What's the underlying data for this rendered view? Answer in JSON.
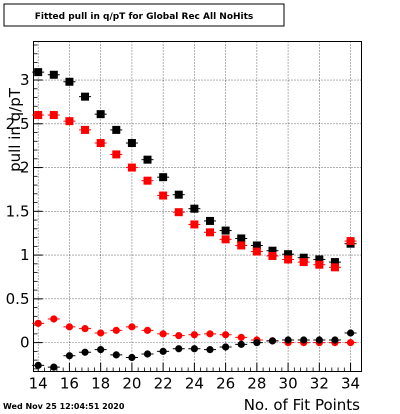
{
  "chart_data": {
    "type": "scatter",
    "title": "Fitted pull in q/pT for Global Rec All NoHits",
    "xlabel": "No. of Fit Points",
    "ylabel": "pull in q/pT",
    "xlim": [
      13.7,
      34.7
    ],
    "ylim": [
      -0.33,
      3.44
    ],
    "x_ticks": [
      14,
      16,
      18,
      20,
      22,
      24,
      26,
      28,
      30,
      32,
      34
    ],
    "y_ticks": [
      0,
      0.5,
      1,
      1.5,
      2,
      2.5,
      3
    ],
    "y_tick_labels": [
      "0",
      "0.5",
      "1",
      "1.5",
      "2",
      "2.5",
      "3"
    ],
    "grid": true,
    "x": [
      14,
      15,
      16,
      17,
      18,
      19,
      20,
      21,
      22,
      23,
      24,
      25,
      26,
      27,
      28,
      29,
      30,
      31,
      32,
      33,
      34
    ],
    "series": [
      {
        "marker": "square",
        "color": "#000000",
        "values": [
          3.09,
          3.06,
          2.98,
          2.81,
          2.61,
          2.43,
          2.28,
          2.09,
          1.89,
          1.69,
          1.53,
          1.39,
          1.28,
          1.19,
          1.11,
          1.05,
          1.01,
          0.97,
          0.95,
          0.92,
          1.13
        ]
      },
      {
        "marker": "square",
        "color": "#ff0000",
        "values": [
          2.6,
          2.6,
          2.53,
          2.43,
          2.28,
          2.15,
          2.0,
          1.85,
          1.68,
          1.49,
          1.35,
          1.26,
          1.18,
          1.11,
          1.04,
          0.99,
          0.95,
          0.92,
          0.89,
          0.86,
          1.16
        ]
      },
      {
        "marker": "circle",
        "color": "#ff0000",
        "values": [
          0.22,
          0.27,
          0.18,
          0.16,
          0.11,
          0.14,
          0.18,
          0.14,
          0.1,
          0.08,
          0.09,
          0.1,
          0.09,
          0.06,
          0.03,
          0.02,
          0.0,
          0.0,
          0.0,
          0.0,
          0.0
        ]
      },
      {
        "marker": "circle",
        "color": "#000000",
        "values": [
          -0.26,
          -0.28,
          -0.15,
          -0.11,
          -0.08,
          -0.14,
          -0.17,
          -0.13,
          -0.1,
          -0.07,
          -0.07,
          -0.08,
          -0.05,
          -0.02,
          0.0,
          0.02,
          0.03,
          0.03,
          0.03,
          0.03,
          0.11
        ]
      }
    ]
  },
  "timestamp": "Wed Nov 25 12:04:51 2020"
}
